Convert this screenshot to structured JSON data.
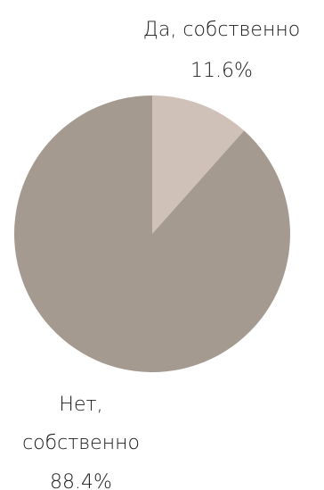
{
  "chart_data": {
    "type": "pie",
    "start_angle_deg": 0,
    "direction": "clockwise",
    "slices": [
      {
        "label_lines": [
          "Да, собственно"
        ],
        "value": 11.6,
        "value_label": "11.6%",
        "color": "#cfc1b7"
      },
      {
        "label_lines": [
          "Нет,",
          "собственно"
        ],
        "value": 88.4,
        "value_label": "88.4%",
        "color": "#a59a90"
      }
    ]
  }
}
